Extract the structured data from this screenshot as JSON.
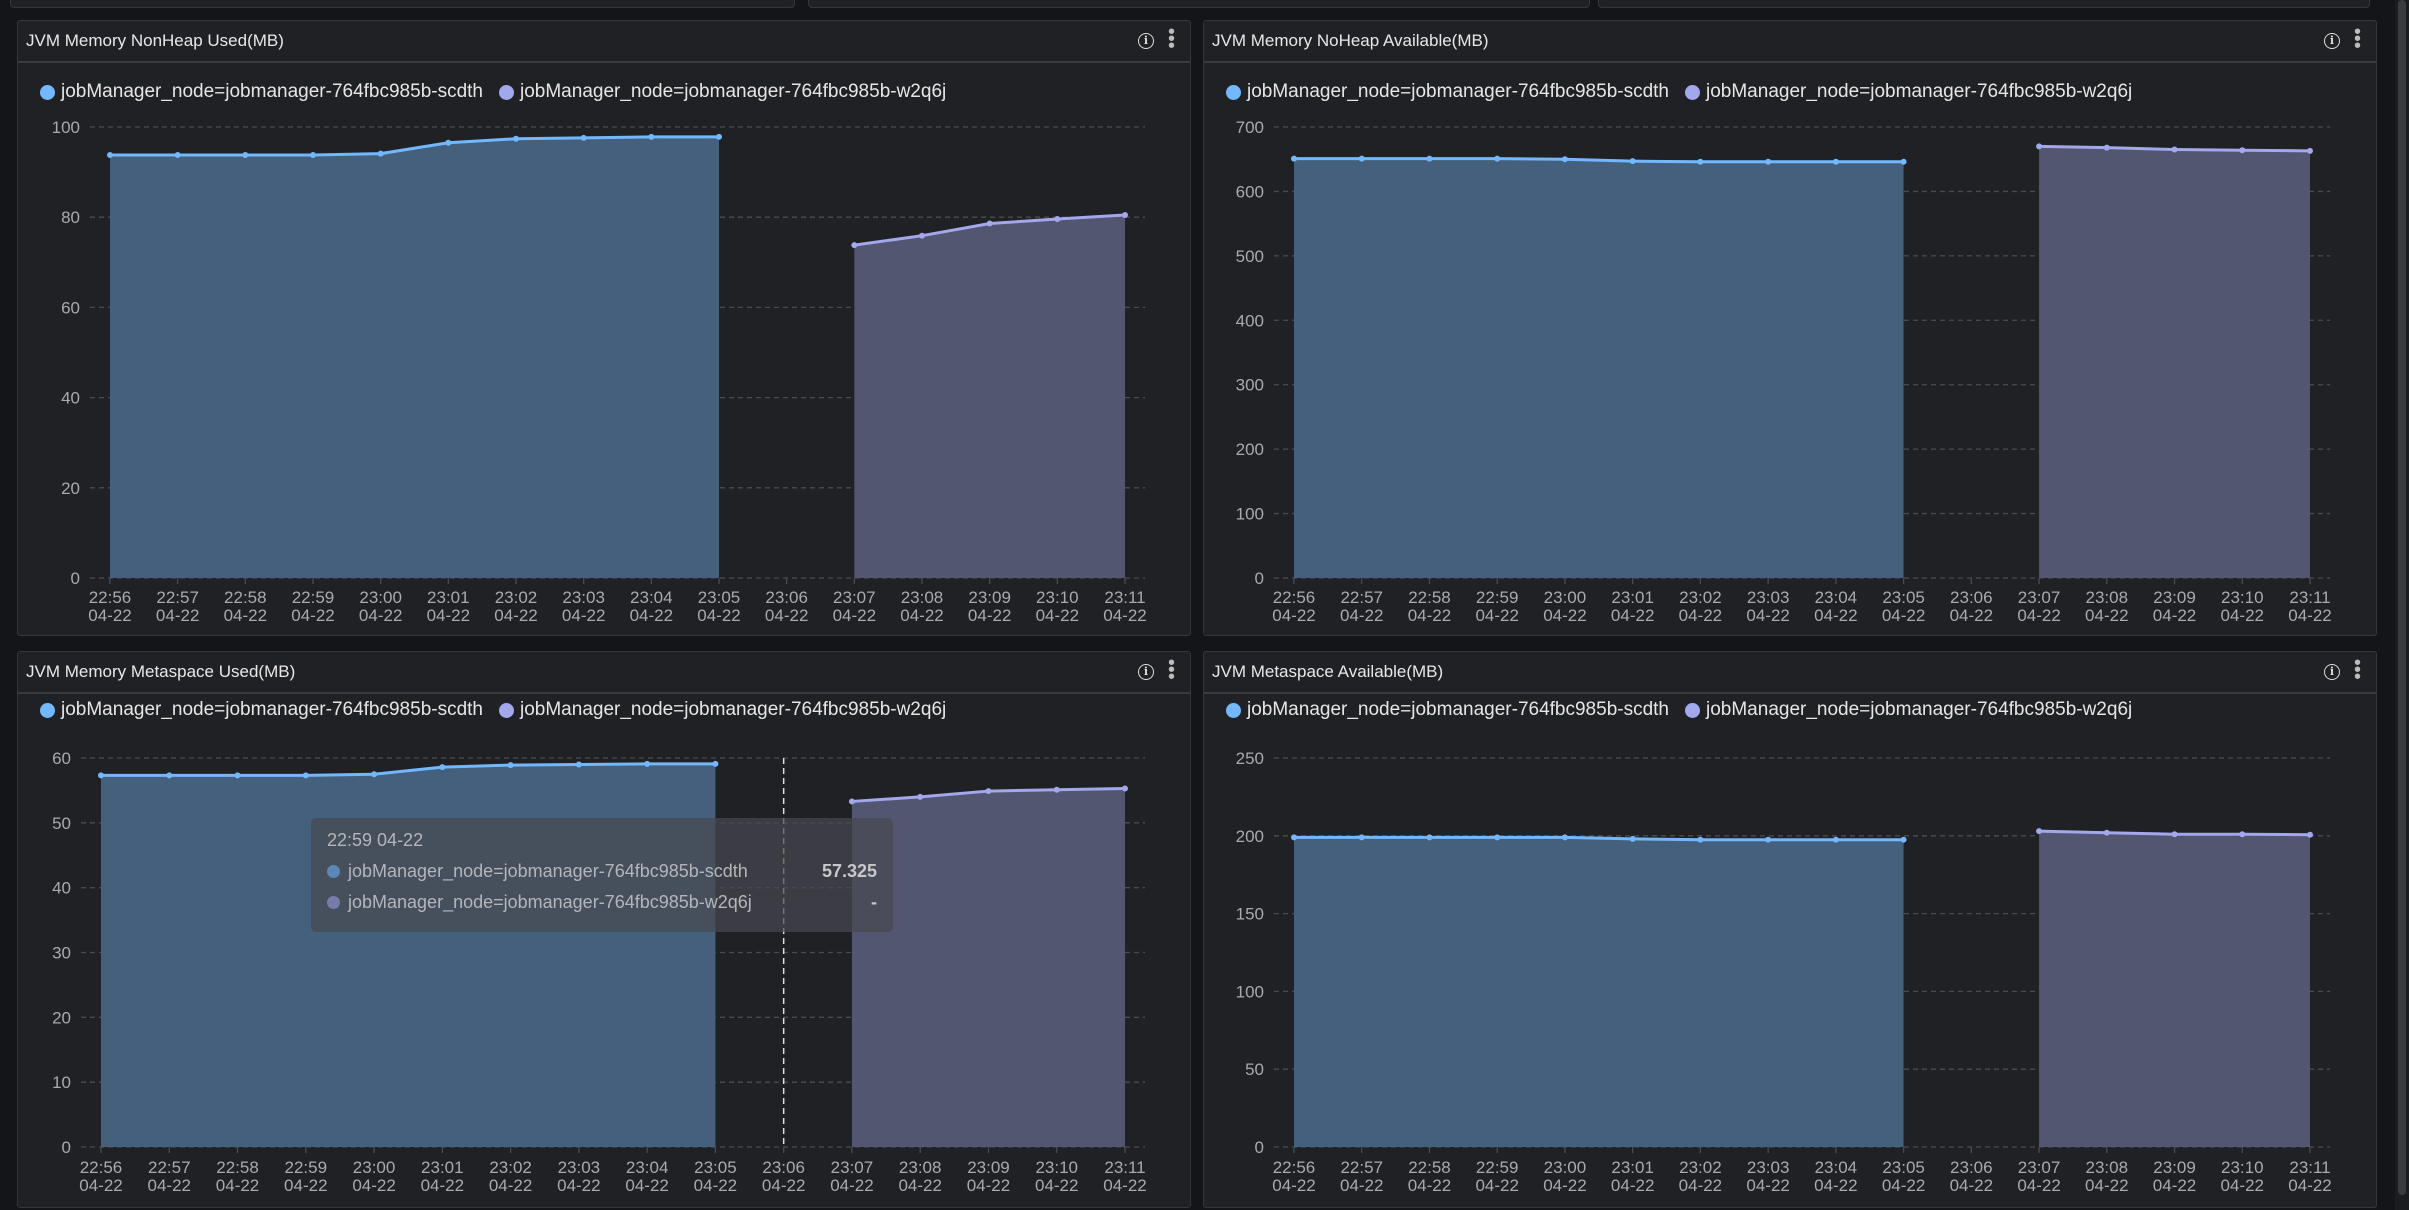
{
  "colors": {
    "series_a": "#73b8ff",
    "series_b": "#a3a7ec",
    "area_a": "#44607c",
    "area_b": "#535670",
    "grid": "#4a4b50",
    "axis_text": "#a8aab0"
  },
  "icons": {
    "info": "info-icon",
    "more": "more-vertical-icon"
  },
  "info_glyph": "i",
  "more_glyph": "⋮",
  "legend": [
    "jobManager_node=jobmanager-764fbc985b-scdth",
    "jobManager_node=jobmanager-764fbc985b-w2q6j"
  ],
  "panels": [
    {
      "title": "JVM Memory NonHeap Used(MB)"
    },
    {
      "title": "JVM Memory NoHeap Available(MB)"
    },
    {
      "title": "JVM Memory Metaspace Used(MB)"
    },
    {
      "title": "JVM Metaspace Available(MB)"
    }
  ],
  "tooltip": {
    "time": "22:59 04-22",
    "rows": [
      {
        "label": "jobManager_node=jobmanager-764fbc985b-scdth",
        "value": "57.325"
      },
      {
        "label": "jobManager_node=jobmanager-764fbc985b-w2q6j",
        "value": "-"
      }
    ]
  },
  "chart_data": [
    {
      "type": "area",
      "title": "JVM Memory NonHeap Used(MB)",
      "x": [
        "22:56",
        "22:57",
        "22:58",
        "22:59",
        "23:00",
        "23:01",
        "23:02",
        "23:03",
        "23:04",
        "23:05",
        "23:06",
        "23:07",
        "23:08",
        "23:09",
        "23:10",
        "23:11"
      ],
      "x_sub": "04-22",
      "ylim": [
        0,
        100
      ],
      "yticks": [
        0,
        20,
        40,
        60,
        80,
        100
      ],
      "grid": true,
      "legend": "top-left",
      "series": [
        {
          "name": "jobManager_node=jobmanager-764fbc985b-scdth",
          "values": [
            93.8,
            93.8,
            93.8,
            93.8,
            94.1,
            96.5,
            97.4,
            97.6,
            97.8,
            97.8,
            null,
            null,
            null,
            null,
            null,
            null
          ]
        },
        {
          "name": "jobManager_node=jobmanager-764fbc985b-w2q6j",
          "values": [
            null,
            null,
            null,
            null,
            null,
            null,
            null,
            null,
            null,
            null,
            null,
            73.8,
            75.9,
            78.6,
            79.6,
            80.5
          ]
        }
      ]
    },
    {
      "type": "area",
      "title": "JVM Memory NoHeap Available(MB)",
      "x": [
        "22:56",
        "22:57",
        "22:58",
        "22:59",
        "23:00",
        "23:01",
        "23:02",
        "23:03",
        "23:04",
        "23:05",
        "23:06",
        "23:07",
        "23:08",
        "23:09",
        "23:10",
        "23:11"
      ],
      "x_sub": "04-22",
      "ylim": [
        0,
        700
      ],
      "yticks": [
        0,
        100,
        200,
        300,
        400,
        500,
        600,
        700
      ],
      "grid": true,
      "legend": "top-left",
      "series": [
        {
          "name": "jobManager_node=jobmanager-764fbc985b-scdth",
          "values": [
            651,
            651,
            651,
            651,
            650,
            647,
            646,
            646,
            646,
            646,
            null,
            null,
            null,
            null,
            null,
            null
          ]
        },
        {
          "name": "jobManager_node=jobmanager-764fbc985b-w2q6j",
          "values": [
            null,
            null,
            null,
            null,
            null,
            null,
            null,
            null,
            null,
            null,
            null,
            670,
            668,
            665,
            664,
            663
          ]
        }
      ]
    },
    {
      "type": "area",
      "title": "JVM Memory Metaspace Used(MB)",
      "x": [
        "22:56",
        "22:57",
        "22:58",
        "22:59",
        "23:00",
        "23:01",
        "23:02",
        "23:03",
        "23:04",
        "23:05",
        "23:06",
        "23:07",
        "23:08",
        "23:09",
        "23:10",
        "23:11"
      ],
      "x_sub": "04-22",
      "ylim": [
        0,
        60
      ],
      "yticks": [
        0,
        10,
        20,
        30,
        40,
        50,
        60
      ],
      "grid": true,
      "legend": "top-left",
      "cursor_x": "23:06",
      "series": [
        {
          "name": "jobManager_node=jobmanager-764fbc985b-scdth",
          "values": [
            57.325,
            57.325,
            57.325,
            57.325,
            57.5,
            58.6,
            58.9,
            59.0,
            59.1,
            59.1,
            null,
            null,
            null,
            null,
            null,
            null
          ]
        },
        {
          "name": "jobManager_node=jobmanager-764fbc985b-w2q6j",
          "values": [
            null,
            null,
            null,
            null,
            null,
            null,
            null,
            null,
            null,
            null,
            null,
            53.3,
            54.0,
            54.9,
            55.1,
            55.3
          ]
        }
      ]
    },
    {
      "type": "area",
      "title": "JVM Metaspace Available(MB)",
      "x": [
        "22:56",
        "22:57",
        "22:58",
        "22:59",
        "23:00",
        "23:01",
        "23:02",
        "23:03",
        "23:04",
        "23:05",
        "23:06",
        "23:07",
        "23:08",
        "23:09",
        "23:10",
        "23:11"
      ],
      "x_sub": "04-22",
      "ylim": [
        0,
        250
      ],
      "yticks": [
        0,
        50,
        100,
        150,
        200,
        250
      ],
      "grid": true,
      "legend": "top-left",
      "series": [
        {
          "name": "jobManager_node=jobmanager-764fbc985b-scdth",
          "values": [
            199,
            199,
            199,
            199,
            199,
            198,
            197.5,
            197.5,
            197.5,
            197.5,
            null,
            null,
            null,
            null,
            null,
            null
          ]
        },
        {
          "name": "jobManager_node=jobmanager-764fbc985b-w2q6j",
          "values": [
            null,
            null,
            null,
            null,
            null,
            null,
            null,
            null,
            null,
            null,
            null,
            203,
            202,
            201,
            201,
            200.7
          ]
        }
      ]
    }
  ]
}
